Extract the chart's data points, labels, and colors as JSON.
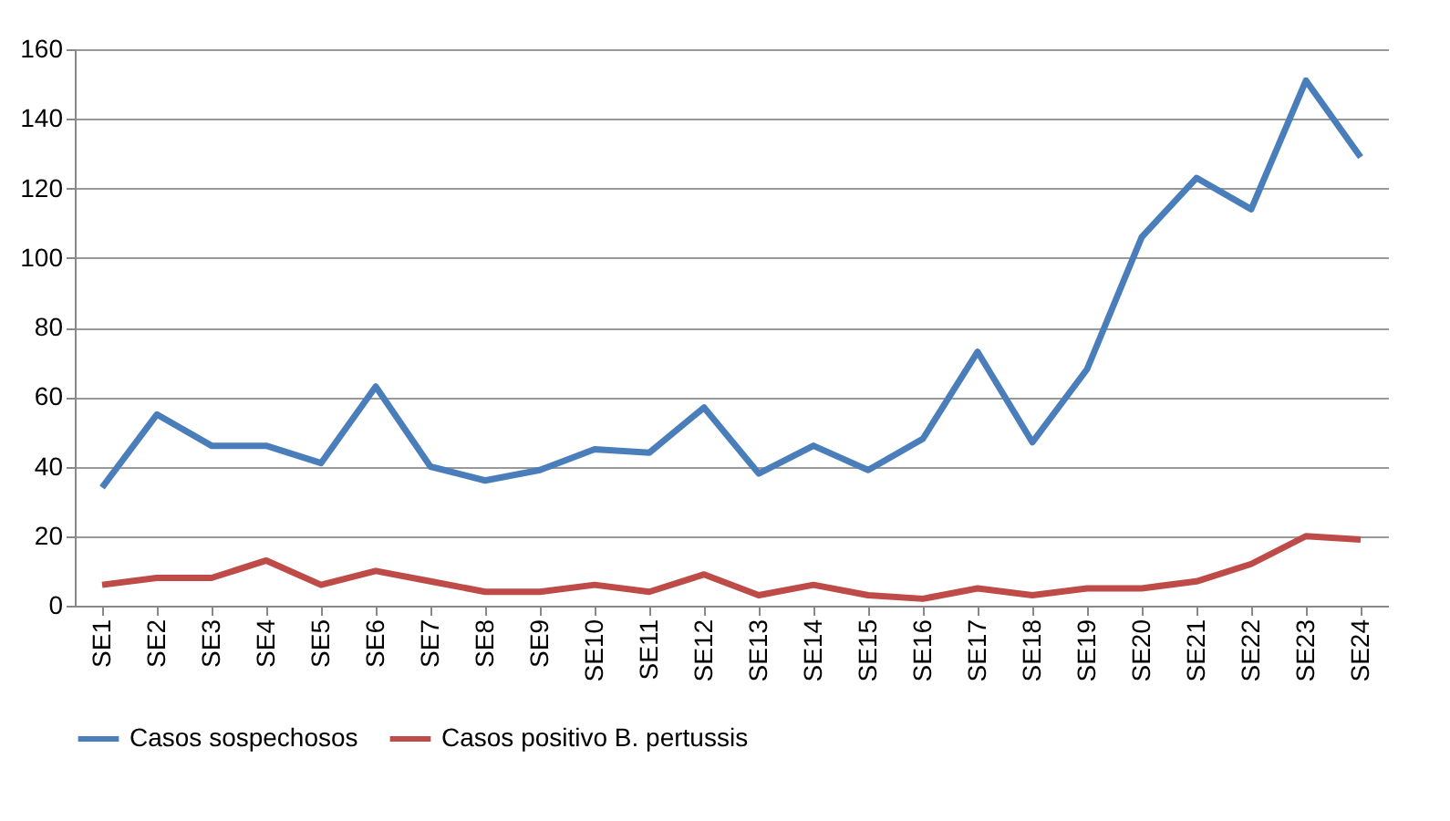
{
  "chart_data": {
    "type": "line",
    "categories": [
      "SE1",
      "SE2",
      "SE3",
      "SE4",
      "SE5",
      "SE6",
      "SE7",
      "SE8",
      "SE9",
      "SE10",
      "SE11",
      "SE12",
      "SE13",
      "SE14",
      "SE15",
      "SE16",
      "SE17",
      "SE18",
      "SE19",
      "SE20",
      "SE21",
      "SE22",
      "SE23",
      "SE24"
    ],
    "series": [
      {
        "name": "Casos sospechosos",
        "color": "#4a7ebb",
        "values": [
          34,
          55,
          46,
          46,
          41,
          63,
          40,
          36,
          39,
          45,
          44,
          57,
          38,
          46,
          39,
          48,
          73,
          47,
          68,
          106,
          123,
          114,
          151,
          129
        ]
      },
      {
        "name": "Casos positivo B. pertussis",
        "color": "#be4b48",
        "values": [
          6,
          8,
          8,
          13,
          6,
          10,
          7,
          4,
          4,
          6,
          4,
          9,
          3,
          6,
          3,
          2,
          5,
          3,
          5,
          5,
          7,
          12,
          20,
          19
        ]
      }
    ],
    "ylim": [
      0,
      160
    ],
    "yticks": [
      0,
      20,
      40,
      60,
      80,
      100,
      120,
      140,
      160
    ],
    "grid": "y",
    "legend": "bottom",
    "marker": "none",
    "line_style": "solid"
  }
}
